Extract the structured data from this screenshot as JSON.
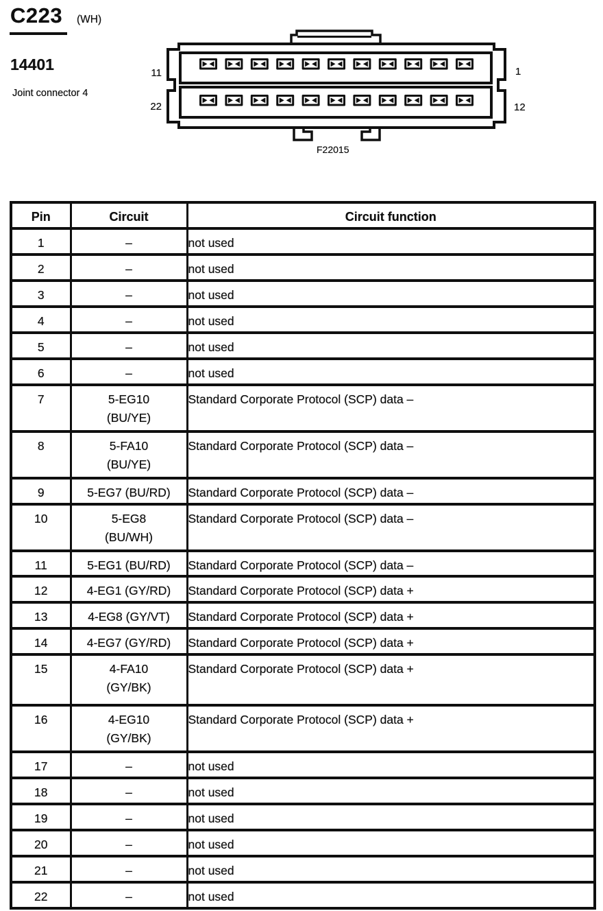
{
  "colors": {
    "ink": "#101010",
    "paper": "#ffffff"
  },
  "header": {
    "connector_id": "C223",
    "color_code": "(WH)",
    "part_number": "14401",
    "description": "Joint connector 4",
    "figure_code": "F22015"
  },
  "connector": {
    "pins_per_row": 11,
    "labels": {
      "top_left": "11",
      "top_right": "1",
      "bottom_left": "22",
      "bottom_right": "12"
    }
  },
  "table": {
    "columns": [
      "Pin",
      "Circuit",
      "Circuit function"
    ],
    "rows": [
      {
        "pin": "1",
        "circuit": "–",
        "function": "not used"
      },
      {
        "pin": "2",
        "circuit": "–",
        "function": "not used"
      },
      {
        "pin": "3",
        "circuit": "–",
        "function": "not used"
      },
      {
        "pin": "4",
        "circuit": "–",
        "function": "not used"
      },
      {
        "pin": "5",
        "circuit": "–",
        "function": "not used"
      },
      {
        "pin": "6",
        "circuit": "–",
        "function": "not used"
      },
      {
        "pin": "7",
        "circuit": "5-EG10\n(BU/YE)",
        "function": "Standard Corporate Protocol (SCP) data –"
      },
      {
        "pin": "8",
        "circuit": "5-FA10\n(BU/YE)",
        "function": "Standard Corporate Protocol (SCP) data –"
      },
      {
        "pin": "9",
        "circuit": "5-EG7 (BU/RD)",
        "function": "Standard Corporate Protocol (SCP) data –"
      },
      {
        "pin": "10",
        "circuit": "5-EG8\n(BU/WH)",
        "function": "Standard Corporate Protocol (SCP) data –"
      },
      {
        "pin": "11",
        "circuit": "5-EG1 (BU/RD)",
        "function": "Standard Corporate Protocol (SCP) data –"
      },
      {
        "pin": "12",
        "circuit": "4-EG1 (GY/RD)",
        "function": "Standard Corporate Protocol (SCP) data +"
      },
      {
        "pin": "13",
        "circuit": "4-EG8 (GY/VT)",
        "function": "Standard Corporate Protocol (SCP) data +"
      },
      {
        "pin": "14",
        "circuit": "4-EG7 (GY/RD)",
        "function": "Standard Corporate Protocol (SCP) data +"
      },
      {
        "pin": "15",
        "circuit": "4-FA10\n(GY/BK)",
        "function": "Standard Corporate Protocol (SCP) data +"
      },
      {
        "pin": "16",
        "circuit": "4-EG10\n(GY/BK)",
        "function": "Standard Corporate Protocol (SCP) data +"
      },
      {
        "pin": "17",
        "circuit": "–",
        "function": "not used"
      },
      {
        "pin": "18",
        "circuit": "–",
        "function": "not used"
      },
      {
        "pin": "19",
        "circuit": "–",
        "function": "not used"
      },
      {
        "pin": "20",
        "circuit": "–",
        "function": "not used"
      },
      {
        "pin": "21",
        "circuit": "–",
        "function": "not used"
      },
      {
        "pin": "22",
        "circuit": "–",
        "function": "not used"
      }
    ]
  }
}
